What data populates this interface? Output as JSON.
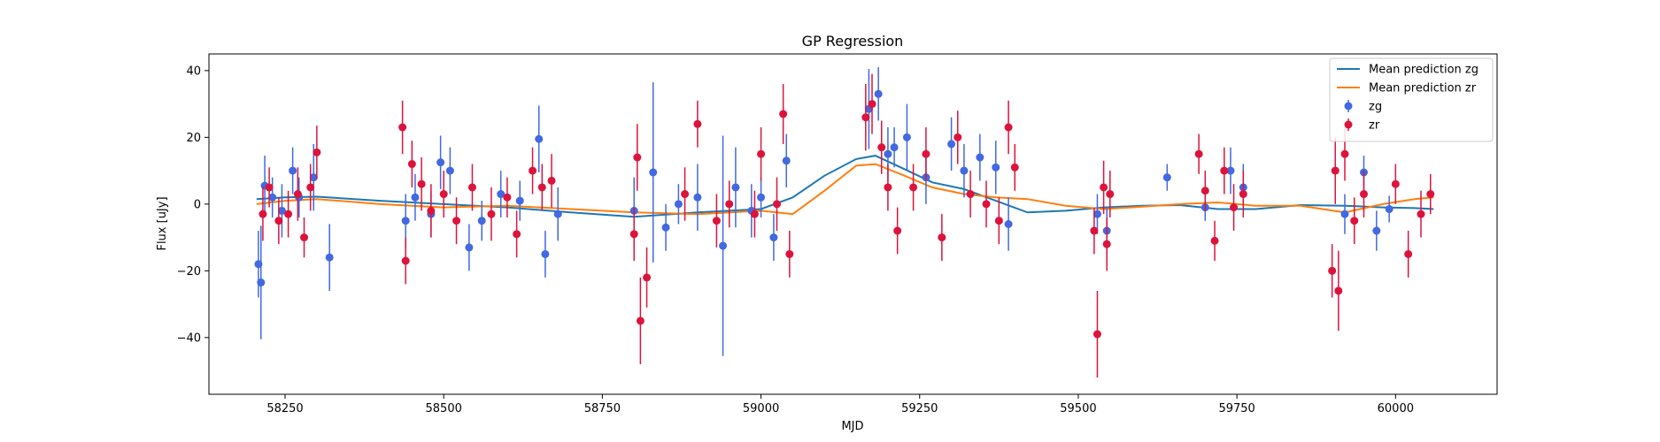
{
  "chart_data": {
    "type": "scatter",
    "title": "GP Regression",
    "xlabel": "MJD",
    "ylabel": "Flux [uJy]",
    "xlim": [
      58130,
      60160
    ],
    "ylim": [
      -57,
      45
    ],
    "xticks": [
      58250,
      58500,
      58750,
      59000,
      59250,
      59500,
      59750,
      60000
    ],
    "yticks": [
      -40,
      -20,
      0,
      20,
      40
    ],
    "grid": false,
    "legend_position": "top-right",
    "legend": [
      "Mean prediction zg",
      "Mean prediction zr",
      "zg",
      "zr"
    ],
    "series": [
      {
        "name": "Mean prediction zg",
        "kind": "line",
        "color": "#1f77b4",
        "x": [
          58205,
          58250,
          58300,
          58400,
          58500,
          58600,
          58700,
          58800,
          58900,
          59000,
          59050,
          59100,
          59150,
          59180,
          59220,
          59270,
          59320,
          59370,
          59420,
          59480,
          59540,
          59600,
          59660,
          59720,
          59780,
          59850,
          59920,
          59980,
          60030,
          60060
        ],
        "y": [
          1.5,
          2.0,
          2.2,
          1.0,
          0.0,
          -1.0,
          -2.5,
          -3.8,
          -2.5,
          -1.5,
          2.0,
          8.5,
          13.5,
          14.5,
          11.0,
          6.5,
          4.5,
          1.0,
          -2.5,
          -2.0,
          -1.0,
          -0.5,
          -0.3,
          -1.5,
          -1.5,
          -0.3,
          -0.5,
          -1.0,
          -1.2,
          -1.5
        ]
      },
      {
        "name": "Mean prediction zr",
        "kind": "line",
        "color": "#ff7f0e",
        "x": [
          58205,
          58250,
          58300,
          58400,
          58500,
          58600,
          58700,
          58800,
          58900,
          59000,
          59050,
          59100,
          59150,
          59180,
          59220,
          59270,
          59320,
          59370,
          59420,
          59480,
          59540,
          59600,
          59660,
          59720,
          59780,
          59850,
          59920,
          59980,
          60030,
          60060
        ],
        "y": [
          0.0,
          1.0,
          1.5,
          0.0,
          -1.0,
          -0.5,
          -1.5,
          -2.5,
          -3.0,
          -2.0,
          -3.0,
          4.0,
          11.5,
          12.0,
          9.0,
          5.0,
          3.0,
          2.0,
          1.5,
          -0.5,
          -1.5,
          -0.8,
          0.0,
          0.5,
          -0.5,
          -0.5,
          -2.5,
          0.0,
          1.5,
          2.0
        ]
      },
      {
        "name": "zg",
        "kind": "errorbar",
        "color": "#4169e1",
        "x": [
          58208,
          58212,
          58218,
          58230,
          58245,
          58262,
          58272,
          58295,
          58320,
          58440,
          58455,
          58480,
          58495,
          58510,
          58540,
          58560,
          58590,
          58620,
          58650,
          58660,
          58680,
          58800,
          58830,
          58850,
          58870,
          58900,
          58940,
          58960,
          58985,
          59000,
          59020,
          59040,
          59170,
          59185,
          59200,
          59210,
          59230,
          59260,
          59300,
          59320,
          59345,
          59370,
          59390,
          59530,
          59545,
          59640,
          59700,
          59740,
          59760,
          59920,
          59950,
          59970,
          59990
        ],
        "y": [
          -18,
          -23.5,
          5.5,
          2,
          -2,
          10,
          2,
          8,
          -16,
          -5,
          2,
          -3,
          12.5,
          10,
          -13,
          -5,
          3,
          1,
          19.5,
          -15,
          -3,
          -2,
          9.5,
          -7,
          0,
          2,
          -12.5,
          5,
          -2,
          2,
          -10,
          13,
          28.5,
          33,
          15,
          17,
          20,
          8,
          18,
          10,
          14,
          11,
          -6,
          -3,
          -8,
          8,
          -1,
          10,
          5,
          -3,
          9.5,
          -8,
          -1.5
        ],
        "err": [
          10,
          17,
          9,
          6,
          8,
          7,
          6,
          10,
          10,
          8,
          7,
          7,
          8,
          7,
          7,
          6,
          7,
          6,
          10,
          7,
          8,
          10,
          27,
          7,
          6,
          10,
          33,
          12,
          8,
          6,
          7,
          8,
          12,
          8,
          8,
          6,
          10,
          8,
          8,
          8,
          7,
          8,
          8,
          6,
          7,
          4,
          4,
          7,
          7,
          6,
          5,
          6,
          4
        ]
      },
      {
        "name": "zr",
        "kind": "errorbar",
        "color": "#dc143c",
        "x": [
          58215,
          58225,
          58240,
          58255,
          58270,
          58280,
          58290,
          58300,
          58435,
          58440,
          58450,
          58465,
          58480,
          58500,
          58520,
          58545,
          58575,
          58600,
          58615,
          58640,
          58655,
          58670,
          58800,
          58805,
          58810,
          58820,
          58880,
          58900,
          58930,
          58950,
          58990,
          59000,
          59025,
          59035,
          59045,
          59165,
          59175,
          59190,
          59200,
          59215,
          59240,
          59260,
          59285,
          59310,
          59330,
          59355,
          59375,
          59390,
          59400,
          59525,
          59530,
          59540,
          59545,
          59550,
          59690,
          59700,
          59715,
          59730,
          59745,
          59760,
          59900,
          59905,
          59910,
          59920,
          59935,
          59950,
          60000,
          60020,
          60040,
          60055
        ],
        "y": [
          -3,
          5,
          -5,
          -3,
          3,
          -10,
          5,
          15.5,
          23,
          -17,
          12,
          6,
          -2,
          3,
          -5,
          5,
          -3,
          2,
          -9,
          10,
          5,
          7,
          -9,
          14,
          -35,
          -22,
          3,
          24,
          -5,
          0,
          -3,
          15,
          0,
          27,
          -15,
          26,
          30,
          17,
          5,
          -8,
          5,
          15,
          -10,
          20,
          3,
          0,
          -5,
          23,
          11,
          -8,
          -39,
          5,
          -12,
          3,
          15,
          4,
          -11,
          10,
          -1,
          3,
          -20,
          10,
          -26,
          15,
          -5,
          3,
          6,
          -15,
          -3,
          3
        ],
        "err": [
          8,
          6,
          7,
          7,
          8,
          6,
          7,
          8,
          8,
          7,
          7,
          8,
          8,
          7,
          7,
          7,
          8,
          6,
          7,
          7,
          7,
          8,
          8,
          10,
          13,
          9,
          8,
          7,
          8,
          7,
          7,
          8,
          8,
          9,
          7,
          10,
          9,
          8,
          7,
          7,
          7,
          8,
          7,
          8,
          7,
          7,
          7,
          8,
          7,
          7,
          13,
          8,
          8,
          7,
          6,
          6,
          6,
          7,
          7,
          7,
          8,
          10,
          12,
          8,
          7,
          7,
          6,
          7,
          7,
          6
        ]
      }
    ]
  }
}
